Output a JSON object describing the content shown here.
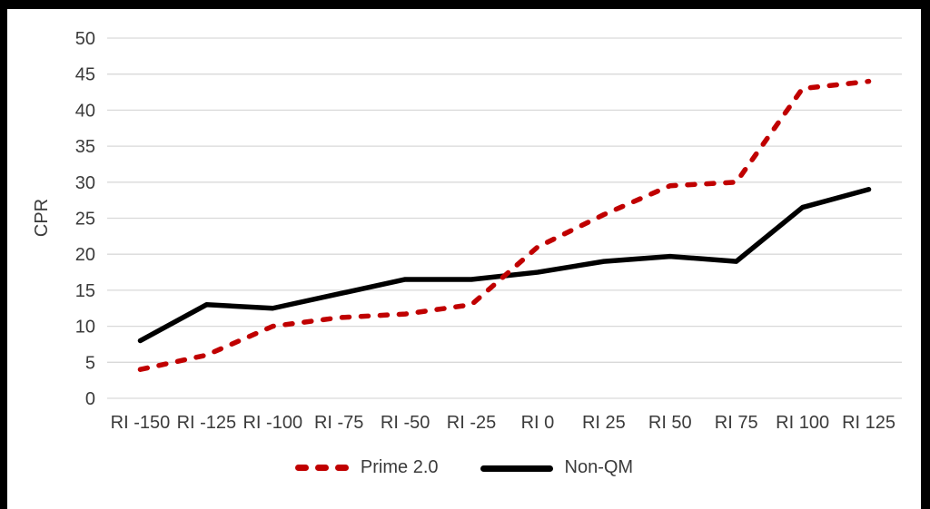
{
  "frame": {
    "background": "#000000"
  },
  "colors": {
    "chart_background": "#FFFFFF",
    "gridline": "#D9D9D9",
    "axis_text": "#3B3B3B",
    "series_prime": "#C00000",
    "series_nonqm": "#000000"
  },
  "chart_data": {
    "type": "line",
    "title": "",
    "categories": [
      "RI -150",
      "RI -125",
      "RI -100",
      "RI -75",
      "RI -50",
      "RI -25",
      "RI 0",
      "RI 25",
      "RI 50",
      "RI 75",
      "RI 100",
      "RI 125"
    ],
    "series": [
      {
        "name": "Prime 2.0",
        "style": "dashed",
        "color": "#C00000",
        "values": [
          4,
          6,
          10,
          11.2,
          11.7,
          13,
          21,
          25.5,
          29.5,
          30,
          43,
          44
        ]
      },
      {
        "name": "Non-QM",
        "style": "solid",
        "color": "#000000",
        "values": [
          8,
          13,
          12.5,
          14.5,
          16.5,
          16.5,
          17.5,
          19,
          19.7,
          19,
          26.5,
          29
        ]
      }
    ],
    "xlabel": "",
    "ylabel": "CPR",
    "ylim": [
      0,
      50
    ],
    "yticks": [
      0,
      5,
      10,
      15,
      20,
      25,
      30,
      35,
      40,
      45,
      50
    ],
    "grid": "horizontal",
    "legend_position": "bottom"
  }
}
